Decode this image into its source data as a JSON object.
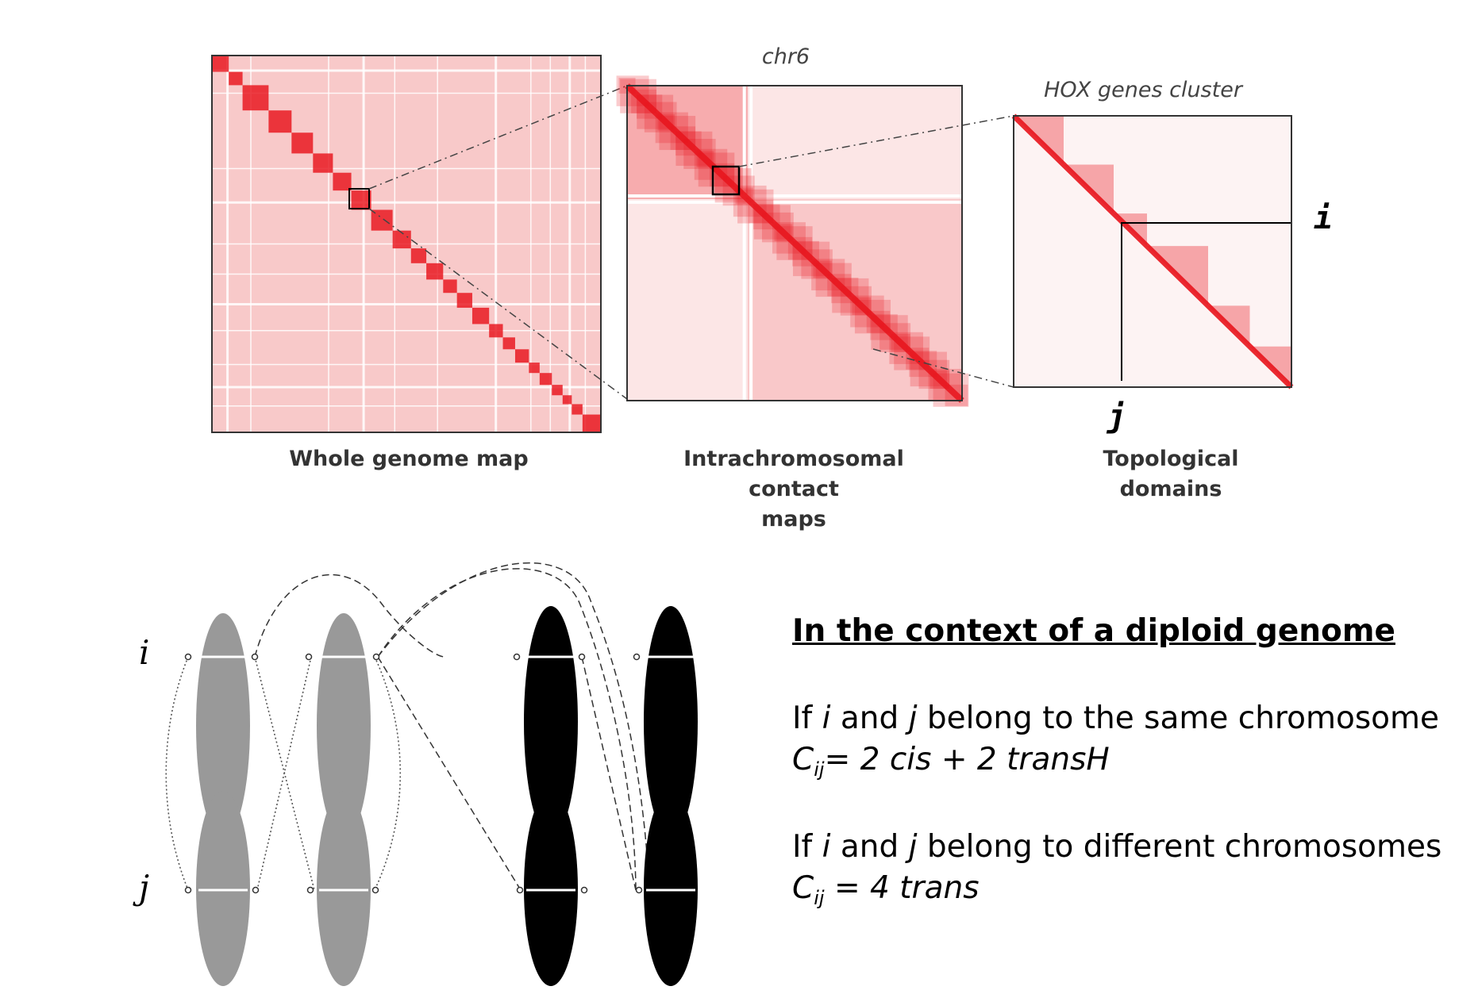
{
  "panels": {
    "whole": {
      "caption": "Whole genome map"
    },
    "intra": {
      "title": "chr6",
      "caption_line1": "Intrachromosomal contact",
      "caption_line2": "maps"
    },
    "hox": {
      "title": "HOX genes cluster",
      "caption_line1": "Topological",
      "caption_line2": "domains",
      "label_i": "i",
      "label_j": "j"
    }
  },
  "chromosomes": {
    "label_i": "i",
    "label_j": "j"
  },
  "text": {
    "heading": "In the context of a diploid genome",
    "same_pre": "If ",
    "same_i": "i",
    "same_mid": " and ",
    "same_j": "j",
    "same_post": " belong to the same chromosome",
    "same_formula_c": "C",
    "same_formula_sub": "ij",
    "same_formula_rest": "= 2 cis + 2 transH",
    "diff_pre": "If ",
    "diff_i": "i",
    "diff_mid": " and ",
    "diff_j": "j",
    "diff_post": " belong to different chromosomes",
    "diff_formula_c": "C",
    "diff_formula_sub": "ij",
    "diff_formula_rest": " = 4 trans"
  },
  "colors": {
    "heat_red": "#e8141c",
    "heat_bg": "#fbd6d6",
    "chrom_gray": "#999999",
    "chrom_black": "#000000"
  }
}
